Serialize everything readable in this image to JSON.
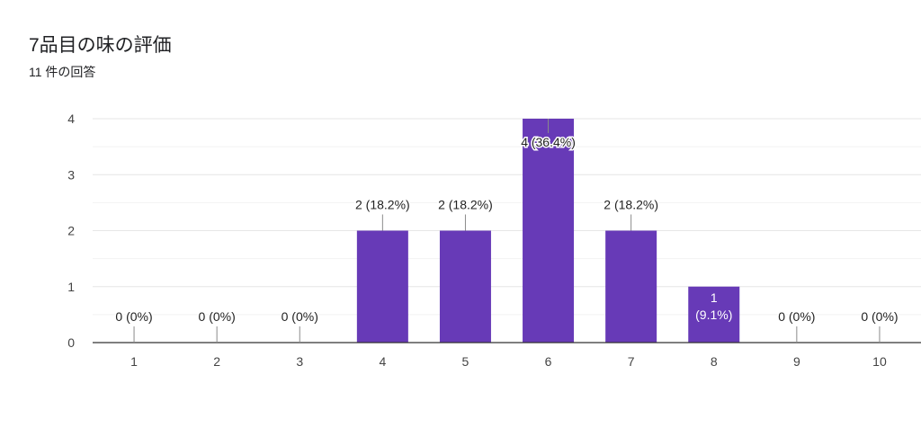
{
  "header": {
    "title": "7品目の味の評価",
    "subtitle": "11 件の回答"
  },
  "chart_data": {
    "type": "bar",
    "categories": [
      "1",
      "2",
      "3",
      "4",
      "5",
      "6",
      "7",
      "8",
      "9",
      "10"
    ],
    "values": [
      0,
      0,
      0,
      2,
      2,
      4,
      2,
      1,
      0,
      0
    ],
    "data_labels": [
      "0 (0%)",
      "0 (0%)",
      "0 (0%)",
      "2 (18.2%)",
      "2 (18.2%)",
      "4 (36.4%)",
      "2 (18.2%)",
      "1 (9.1%)",
      "0 (0%)",
      "0 (0%)"
    ],
    "y_ticks": [
      "0",
      "1",
      "2",
      "3",
      "4"
    ],
    "ylim": [
      0,
      4
    ],
    "bar_color": "#673ab7",
    "grid": true,
    "legend": "none"
  }
}
